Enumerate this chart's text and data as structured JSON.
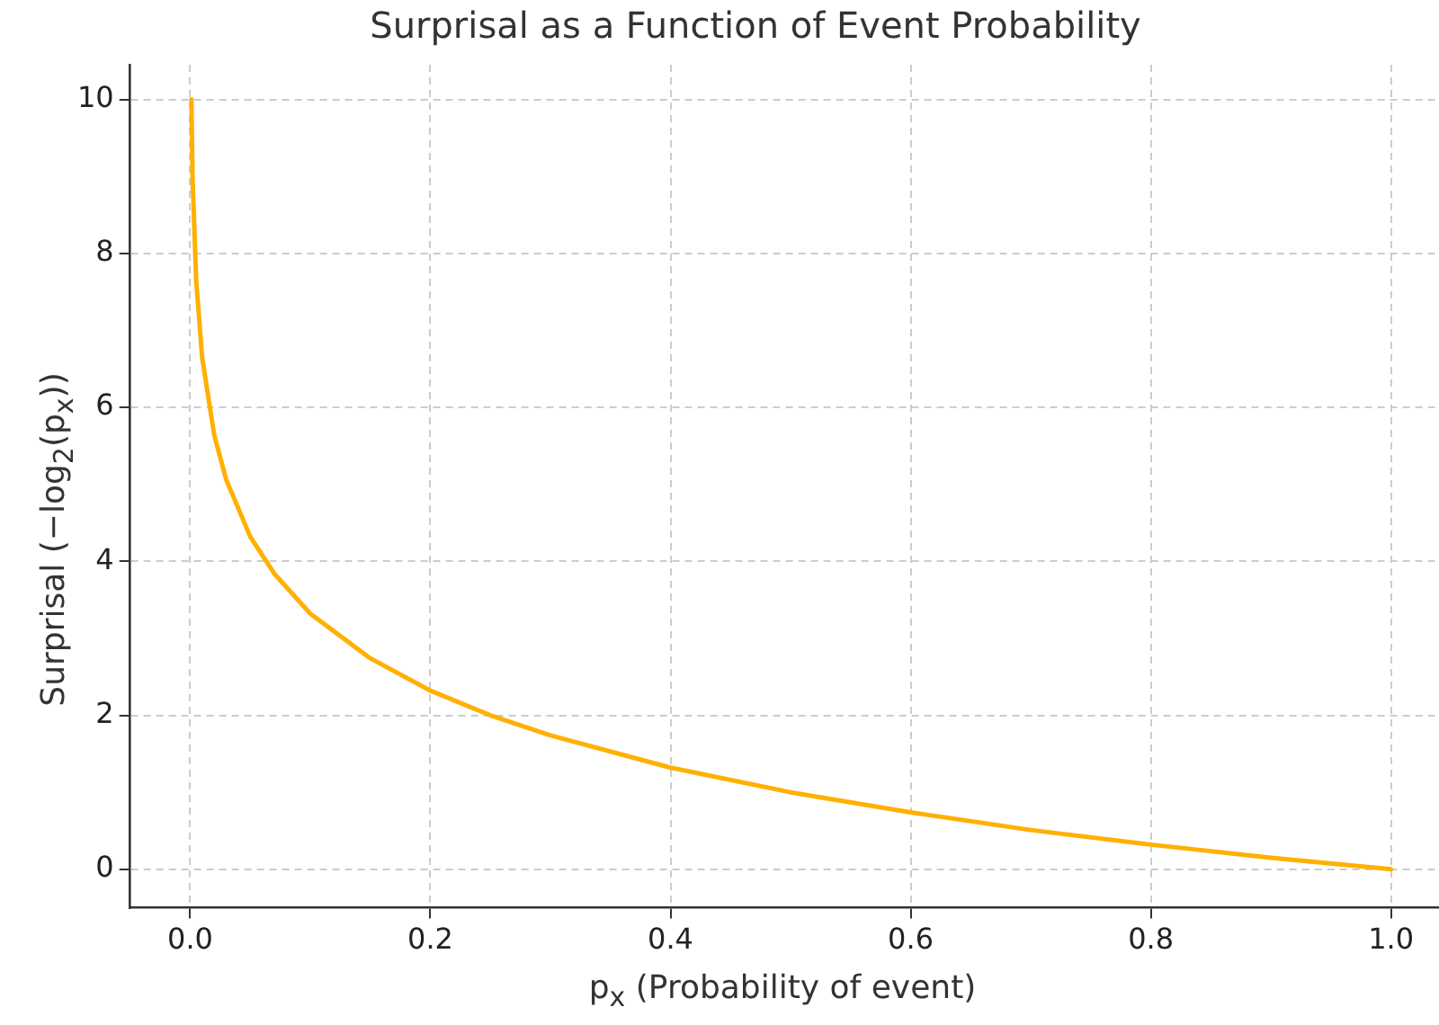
{
  "chart_data": {
    "type": "line",
    "title": "Surprisal as a Function of Event Probability",
    "xlabel": "p$_{x}$ (Probability of event)",
    "ylabel": "Surprisal (−log$_{2}$(p$_{x}$))",
    "x": [
      0.001,
      0.002,
      0.005,
      0.01,
      0.02,
      0.03,
      0.05,
      0.07,
      0.1,
      0.15,
      0.2,
      0.25,
      0.3,
      0.4,
      0.5,
      0.6,
      0.7,
      0.8,
      0.9,
      1.0
    ],
    "series": [
      {
        "color": "#ffb000",
        "values": [
          10,
          8.97,
          7.64,
          6.64,
          5.64,
          5.06,
          4.32,
          3.84,
          3.32,
          2.74,
          2.32,
          2.0,
          1.74,
          1.32,
          1.0,
          0.74,
          0.51,
          0.32,
          0.15,
          0
        ]
      }
    ],
    "xlim": [
      -0.05,
      1.04
    ],
    "ylim": [
      -0.5,
      10.45
    ],
    "xticks": [
      {
        "value": 0,
        "label": "0.0"
      },
      {
        "value": 0.2,
        "label": "0.2"
      },
      {
        "value": 0.4,
        "label": "0.4"
      },
      {
        "value": 0.6,
        "label": "0.6"
      },
      {
        "value": 0.8,
        "label": "0.8"
      },
      {
        "value": 1,
        "label": "1.0"
      }
    ],
    "yticks": [
      0,
      2,
      4,
      6,
      8,
      10
    ],
    "grid": true,
    "legend": false,
    "marker": "none",
    "line_style": "solid"
  }
}
